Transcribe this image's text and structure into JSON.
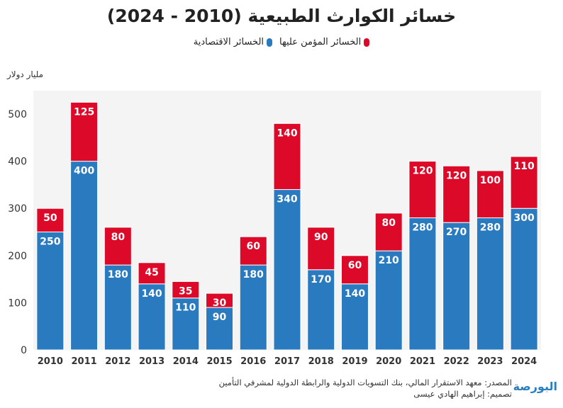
{
  "title": "خسائر الكوارث الطبيعية (2010 - 2024)",
  "legend": [
    {
      "label": "الخسائر المؤمن عليها",
      "color": "#dc0a28"
    },
    {
      "label": "الخسائر الاقتصادية",
      "color": "#2a7abf"
    }
  ],
  "footer": {
    "source": "المصدر: معهد الاستقرار المالي، بنك التسويات الدولية والرابطة الدولية لمشرفي التأمين",
    "design": "تصميم: إبراهيم الهادي عيسى",
    "logo": "البورصة"
  },
  "chart_data": {
    "type": "bar",
    "stacked": true,
    "title": "خسائر الكوارث الطبيعية (2010 - 2024)",
    "ylabel": "مليار دولار",
    "ylim": [
      0,
      550
    ],
    "yticks": [
      0,
      100,
      200,
      300,
      400,
      500
    ],
    "grid": false,
    "legend_position": "top",
    "categories": [
      "2010",
      "2011",
      "2012",
      "2013",
      "2014",
      "2015",
      "2016",
      "2017",
      "2018",
      "2019",
      "2020",
      "2021",
      "2022",
      "2023",
      "2024"
    ],
    "series": [
      {
        "name": "الخسائر الاقتصادية",
        "color": "#2a7abf",
        "values": [
          250,
          400,
          180,
          140,
          110,
          90,
          180,
          340,
          170,
          140,
          210,
          280,
          270,
          280,
          300
        ]
      },
      {
        "name": "الخسائر المؤمن عليها",
        "color": "#dc0a28",
        "values": [
          50,
          125,
          80,
          45,
          35,
          30,
          60,
          140,
          90,
          60,
          80,
          120,
          120,
          100,
          110
        ]
      }
    ]
  }
}
